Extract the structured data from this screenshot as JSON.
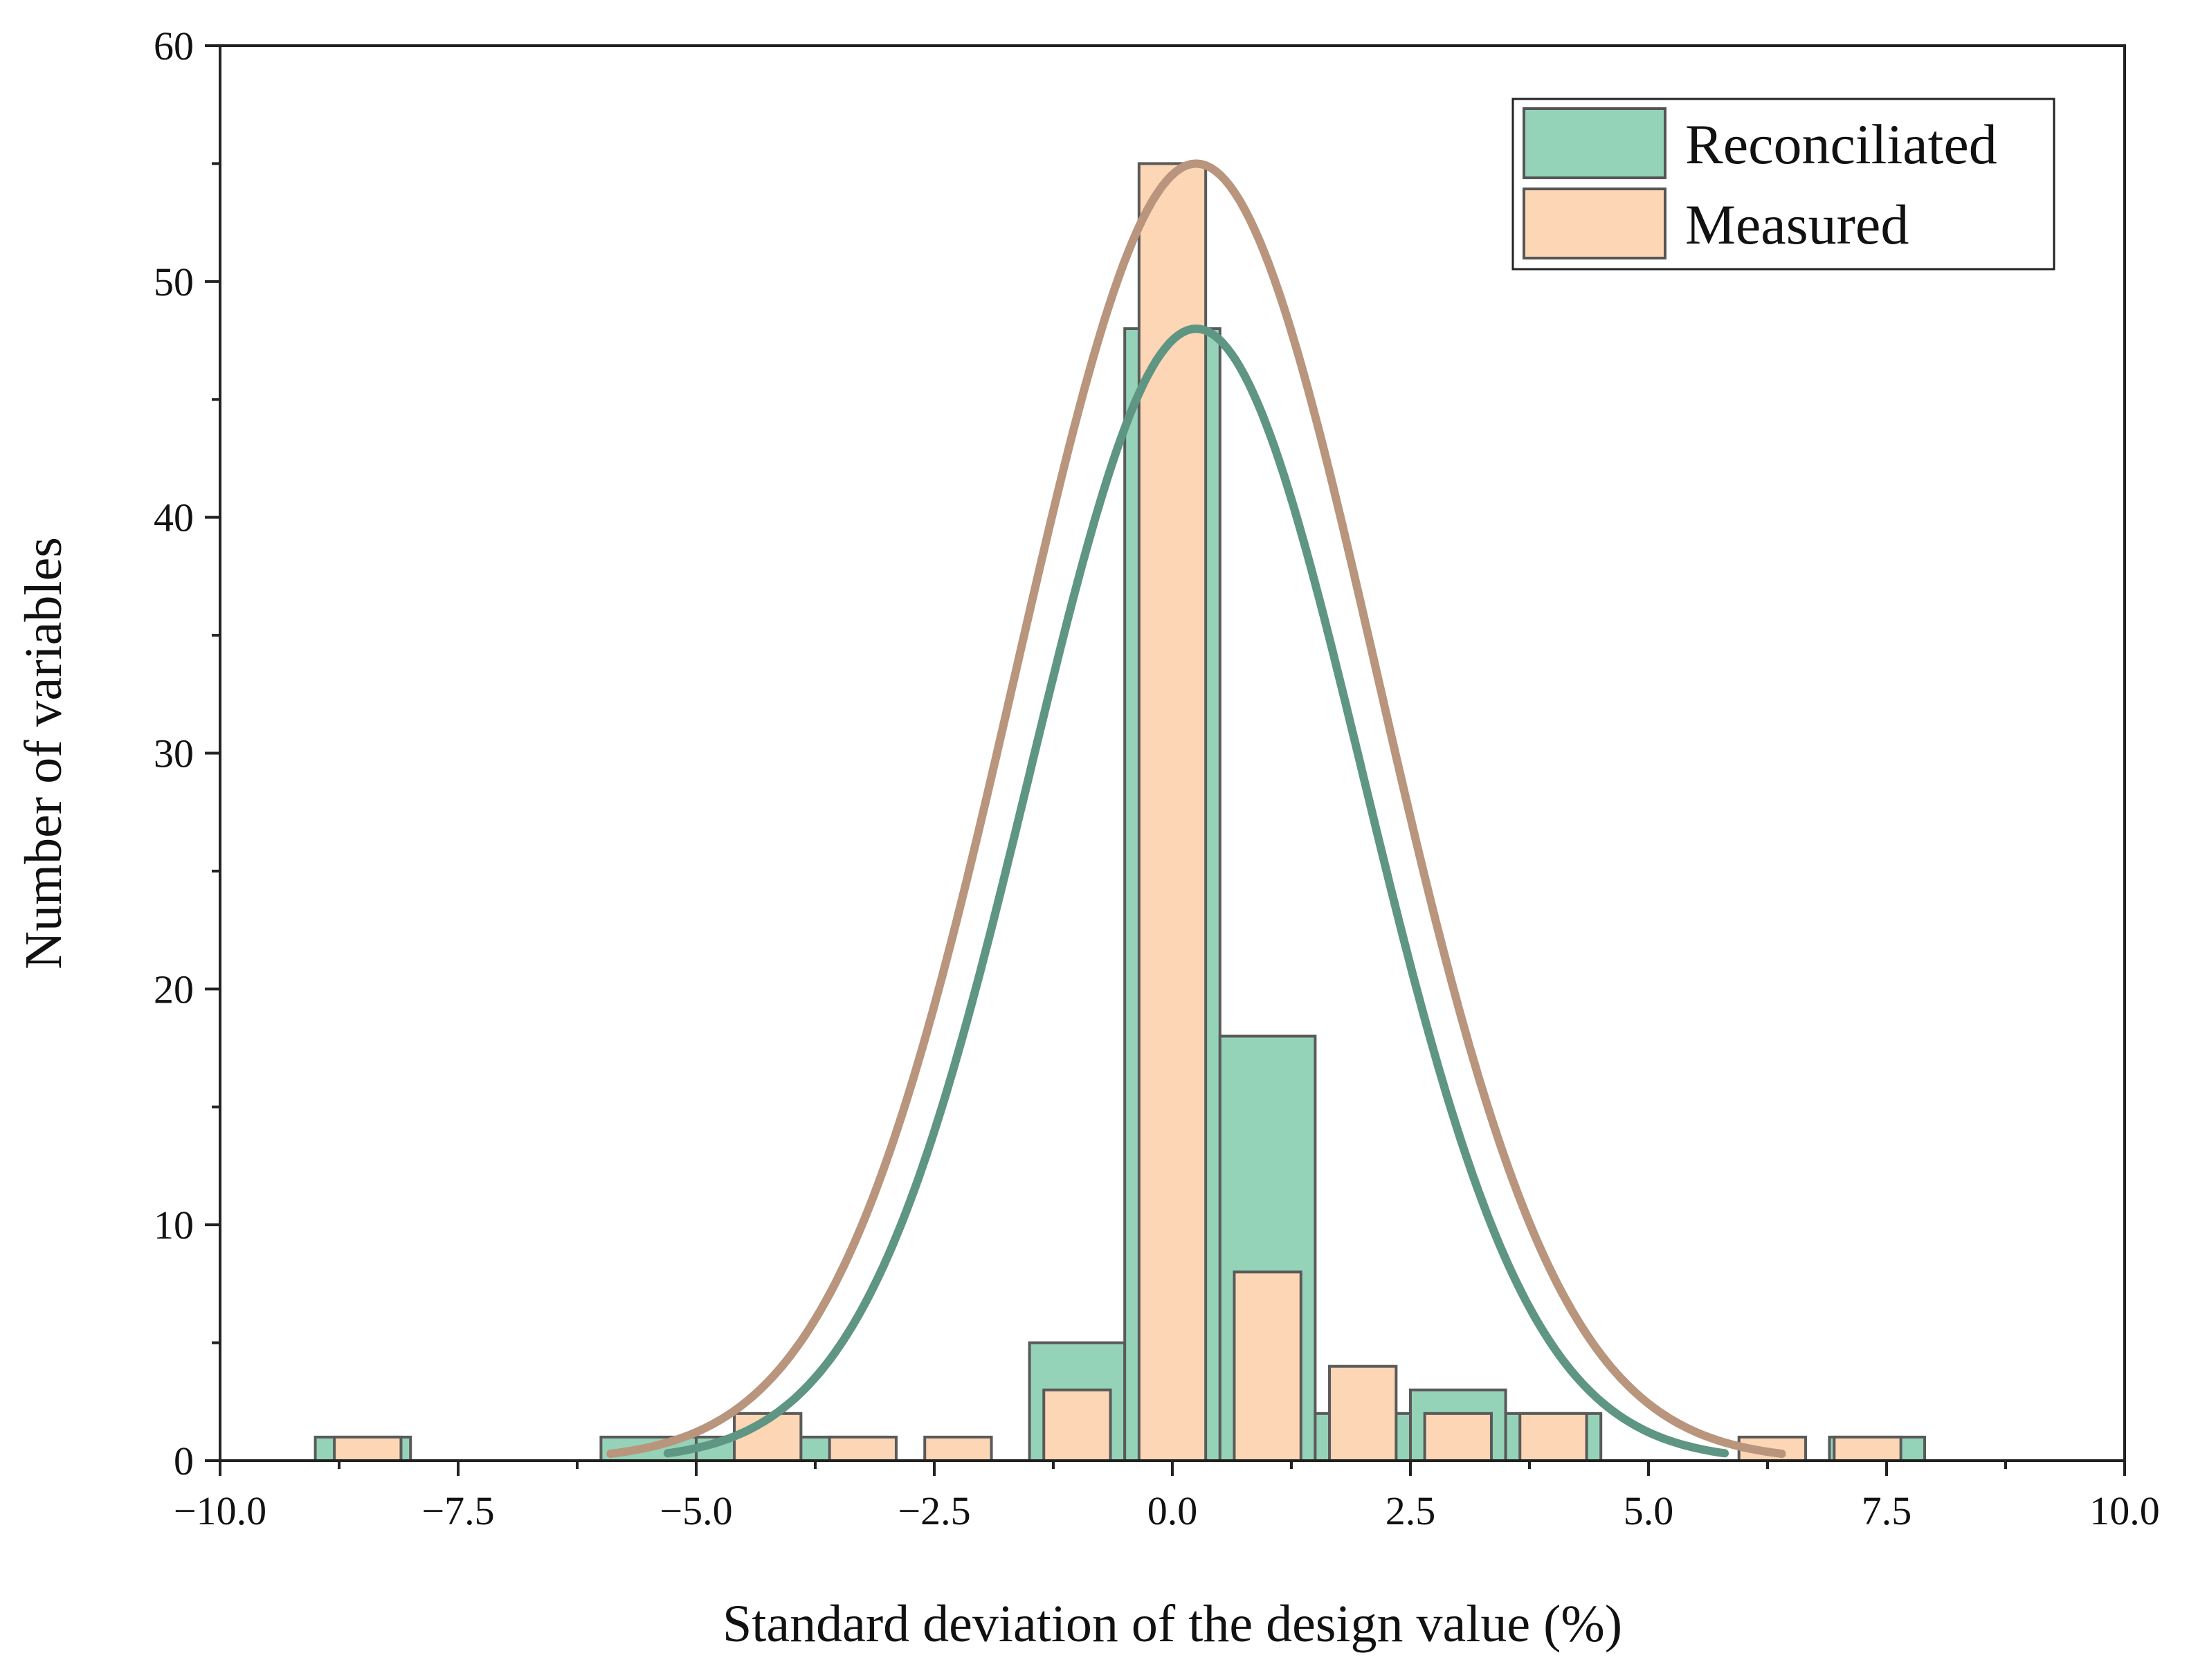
{
  "chart_data": {
    "type": "bar",
    "title": "",
    "xlabel": "Standard deviation of the design value (%)",
    "ylabel": "Number of variables",
    "xlim": [
      -10,
      10
    ],
    "ylim": [
      0,
      60
    ],
    "xticks": [
      -10,
      -7.5,
      -5,
      -2.5,
      0,
      2.5,
      5,
      7.5,
      10
    ],
    "xtick_labels": [
      "−10.0",
      "−7.5",
      "−5.0",
      "−2.5",
      "0.0",
      "2.5",
      "5.0",
      "7.5",
      "10.0"
    ],
    "yticks": [
      0,
      10,
      20,
      30,
      40,
      50,
      60
    ],
    "ytick_labels": [
      "0",
      "10",
      "20",
      "30",
      "40",
      "50",
      "60"
    ],
    "legend_position": "top-right",
    "series": [
      {
        "name": "Reconciliated",
        "color": "#95d3b9",
        "curve_color": "#5e9683",
        "bin_width": 1.0,
        "bins": [
          {
            "x": -8.5,
            "count": 1
          },
          {
            "x": -5.5,
            "count": 1
          },
          {
            "x": -4.5,
            "count": 1
          },
          {
            "x": -3.5,
            "count": 1
          },
          {
            "x": -1.0,
            "count": 5
          },
          {
            "x": 0.0,
            "count": 48
          },
          {
            "x": 1.0,
            "count": 18
          },
          {
            "x": 2.0,
            "count": 2
          },
          {
            "x": 3.0,
            "count": 3
          },
          {
            "x": 4.0,
            "count": 2
          },
          {
            "x": 7.4,
            "count": 1
          }
        ],
        "fit": {
          "mean": 0.25,
          "sd": 1.75,
          "peak": 48,
          "range": [
            -5.3,
            5.8
          ]
        }
      },
      {
        "name": "Measured",
        "color": "#fdd6b5",
        "curve_color": "#b8957c",
        "bin_width": 0.7,
        "bins": [
          {
            "x": -8.45,
            "count": 1
          },
          {
            "x": -4.25,
            "count": 2
          },
          {
            "x": -3.25,
            "count": 1
          },
          {
            "x": -2.25,
            "count": 1
          },
          {
            "x": -1.0,
            "count": 3
          },
          {
            "x": 0.0,
            "count": 55
          },
          {
            "x": 1.0,
            "count": 8
          },
          {
            "x": 2.0,
            "count": 4
          },
          {
            "x": 3.0,
            "count": 2
          },
          {
            "x": 4.0,
            "count": 2
          },
          {
            "x": 6.3,
            "count": 1
          },
          {
            "x": 7.3,
            "count": 1
          }
        ],
        "fit": {
          "mean": 0.25,
          "sd": 1.9,
          "peak": 55,
          "range": [
            -5.9,
            6.4
          ]
        }
      }
    ]
  }
}
